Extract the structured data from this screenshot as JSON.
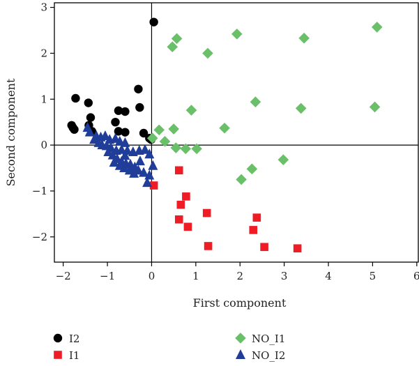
{
  "chart_data": {
    "type": "scatter",
    "xlabel": "First component",
    "ylabel": "Second component",
    "xlim": [
      -2.2,
      6.05
    ],
    "ylim": [
      -2.55,
      3.1
    ],
    "x_ticks": [
      -2,
      -1,
      0,
      1,
      2,
      3,
      4,
      5,
      6
    ],
    "y_ticks": [
      -2,
      -1,
      0,
      1,
      2,
      3
    ],
    "x_tick_labels": [
      "−2",
      "−1",
      "0",
      "1",
      "2",
      "3",
      "4",
      "5",
      "6"
    ],
    "y_tick_labels": [
      "−2",
      "−1",
      "0",
      "1",
      "2",
      "3"
    ],
    "zero_lines": true,
    "grid": false,
    "legend_position": "bottom",
    "series": [
      {
        "name": "I2",
        "marker": "circle",
        "color": "#000000",
        "points": [
          [
            0.05,
            2.68
          ],
          [
            -1.72,
            1.02
          ],
          [
            -1.43,
            0.92
          ],
          [
            -0.3,
            1.22
          ],
          [
            -1.38,
            0.6
          ],
          [
            -0.82,
            0.5
          ],
          [
            -0.75,
            0.75
          ],
          [
            -0.6,
            0.73
          ],
          [
            -0.27,
            0.82
          ],
          [
            -1.81,
            0.43
          ],
          [
            -1.78,
            0.38
          ],
          [
            -1.75,
            0.34
          ],
          [
            -1.42,
            0.43
          ],
          [
            -1.35,
            0.3
          ],
          [
            -0.75,
            0.3
          ],
          [
            -0.6,
            0.28
          ],
          [
            -0.18,
            0.26
          ],
          [
            -0.05,
            0.15
          ],
          [
            -0.01,
            0.12
          ]
        ]
      },
      {
        "name": "I1",
        "marker": "square",
        "color": "#ee1c24",
        "points": [
          [
            0.05,
            -0.88
          ],
          [
            0.62,
            -0.55
          ],
          [
            0.78,
            -1.12
          ],
          [
            0.66,
            -1.3
          ],
          [
            0.62,
            -1.62
          ],
          [
            0.82,
            -1.78
          ],
          [
            1.25,
            -1.48
          ],
          [
            1.28,
            -2.2
          ],
          [
            2.38,
            -1.58
          ],
          [
            2.3,
            -1.85
          ],
          [
            2.55,
            -2.22
          ],
          [
            3.3,
            -2.25
          ]
        ]
      },
      {
        "name": "NO_I1",
        "marker": "diamond",
        "color": "#6abf69",
        "points": [
          [
            0.57,
            2.32
          ],
          [
            0.47,
            2.14
          ],
          [
            1.27,
            2.0
          ],
          [
            1.93,
            2.42
          ],
          [
            3.45,
            2.33
          ],
          [
            5.1,
            2.57
          ],
          [
            0.9,
            0.76
          ],
          [
            2.35,
            0.94
          ],
          [
            3.38,
            0.8
          ],
          [
            5.05,
            0.83
          ],
          [
            0.17,
            0.33
          ],
          [
            0.5,
            0.35
          ],
          [
            1.65,
            0.37
          ],
          [
            0.02,
            0.15
          ],
          [
            0.3,
            0.08
          ],
          [
            0.55,
            -0.06
          ],
          [
            0.77,
            -0.08
          ],
          [
            1.02,
            -0.08
          ],
          [
            2.98,
            -0.32
          ],
          [
            2.27,
            -0.52
          ],
          [
            2.03,
            -0.75
          ]
        ]
      },
      {
        "name": "NO_I2",
        "marker": "triangle",
        "color": "#1f3d99",
        "points": [
          [
            -1.45,
            0.38
          ],
          [
            -1.4,
            0.28
          ],
          [
            -1.25,
            0.2
          ],
          [
            -1.15,
            0.17
          ],
          [
            -1.05,
            0.2
          ],
          [
            -0.95,
            0.12
          ],
          [
            -0.82,
            0.14
          ],
          [
            -0.72,
            0.08
          ],
          [
            -0.6,
            0.05
          ],
          [
            -1.3,
            0.12
          ],
          [
            -1.2,
            0.05
          ],
          [
            -1.12,
            0.0
          ],
          [
            -1.02,
            -0.02
          ],
          [
            -0.92,
            -0.06
          ],
          [
            -0.8,
            -0.12
          ],
          [
            -0.68,
            -0.1
          ],
          [
            -0.55,
            -0.12
          ],
          [
            -0.42,
            -0.15
          ],
          [
            -0.28,
            -0.12
          ],
          [
            -0.15,
            -0.1
          ],
          [
            -0.05,
            -0.2
          ],
          [
            -0.98,
            -0.15
          ],
          [
            -0.88,
            -0.22
          ],
          [
            -0.78,
            -0.3
          ],
          [
            -0.68,
            -0.36
          ],
          [
            -0.58,
            -0.4
          ],
          [
            -0.48,
            -0.42
          ],
          [
            -0.38,
            -0.48
          ],
          [
            -0.3,
            -0.55
          ],
          [
            -0.85,
            -0.38
          ],
          [
            -0.72,
            -0.45
          ],
          [
            -0.62,
            -0.5
          ],
          [
            -0.5,
            -0.55
          ],
          [
            -0.4,
            -0.62
          ],
          [
            -0.18,
            -0.6
          ],
          [
            -0.05,
            -0.66
          ],
          [
            -0.1,
            -0.82
          ],
          [
            0.03,
            -0.45
          ],
          [
            -0.26,
            -0.35
          ],
          [
            -0.6,
            -0.23
          ]
        ]
      }
    ]
  }
}
